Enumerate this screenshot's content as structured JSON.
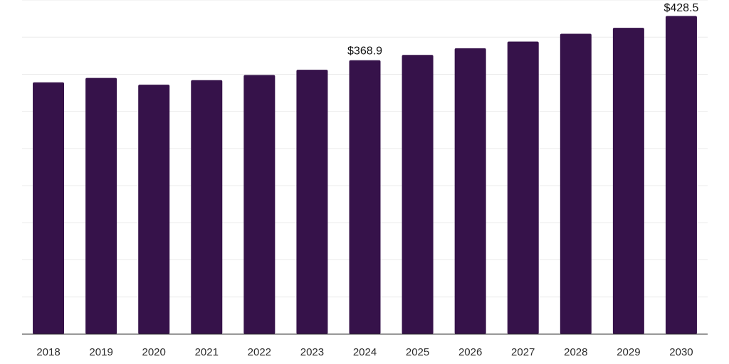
{
  "colors": {
    "bar": "#36124a",
    "grid": "#ebebeb",
    "axis": "#333333"
  },
  "chart_data": {
    "type": "bar",
    "categories": [
      "2018",
      "2019",
      "2020",
      "2021",
      "2022",
      "2023",
      "2024",
      "2025",
      "2026",
      "2027",
      "2028",
      "2029",
      "2030"
    ],
    "values": [
      339.0,
      345.0,
      336.0,
      342.0,
      349.0,
      356.0,
      368.9,
      376.0,
      385.0,
      394.0,
      404.5,
      412.5,
      428.5
    ],
    "data_labels": [
      {
        "index": 6,
        "text": "$368.9"
      },
      {
        "index": 12,
        "text": "$428.5"
      }
    ],
    "ylim": [
      0,
      450
    ],
    "grid": true,
    "gridlines": 9,
    "title": "",
    "xlabel": "",
    "ylabel": ""
  }
}
